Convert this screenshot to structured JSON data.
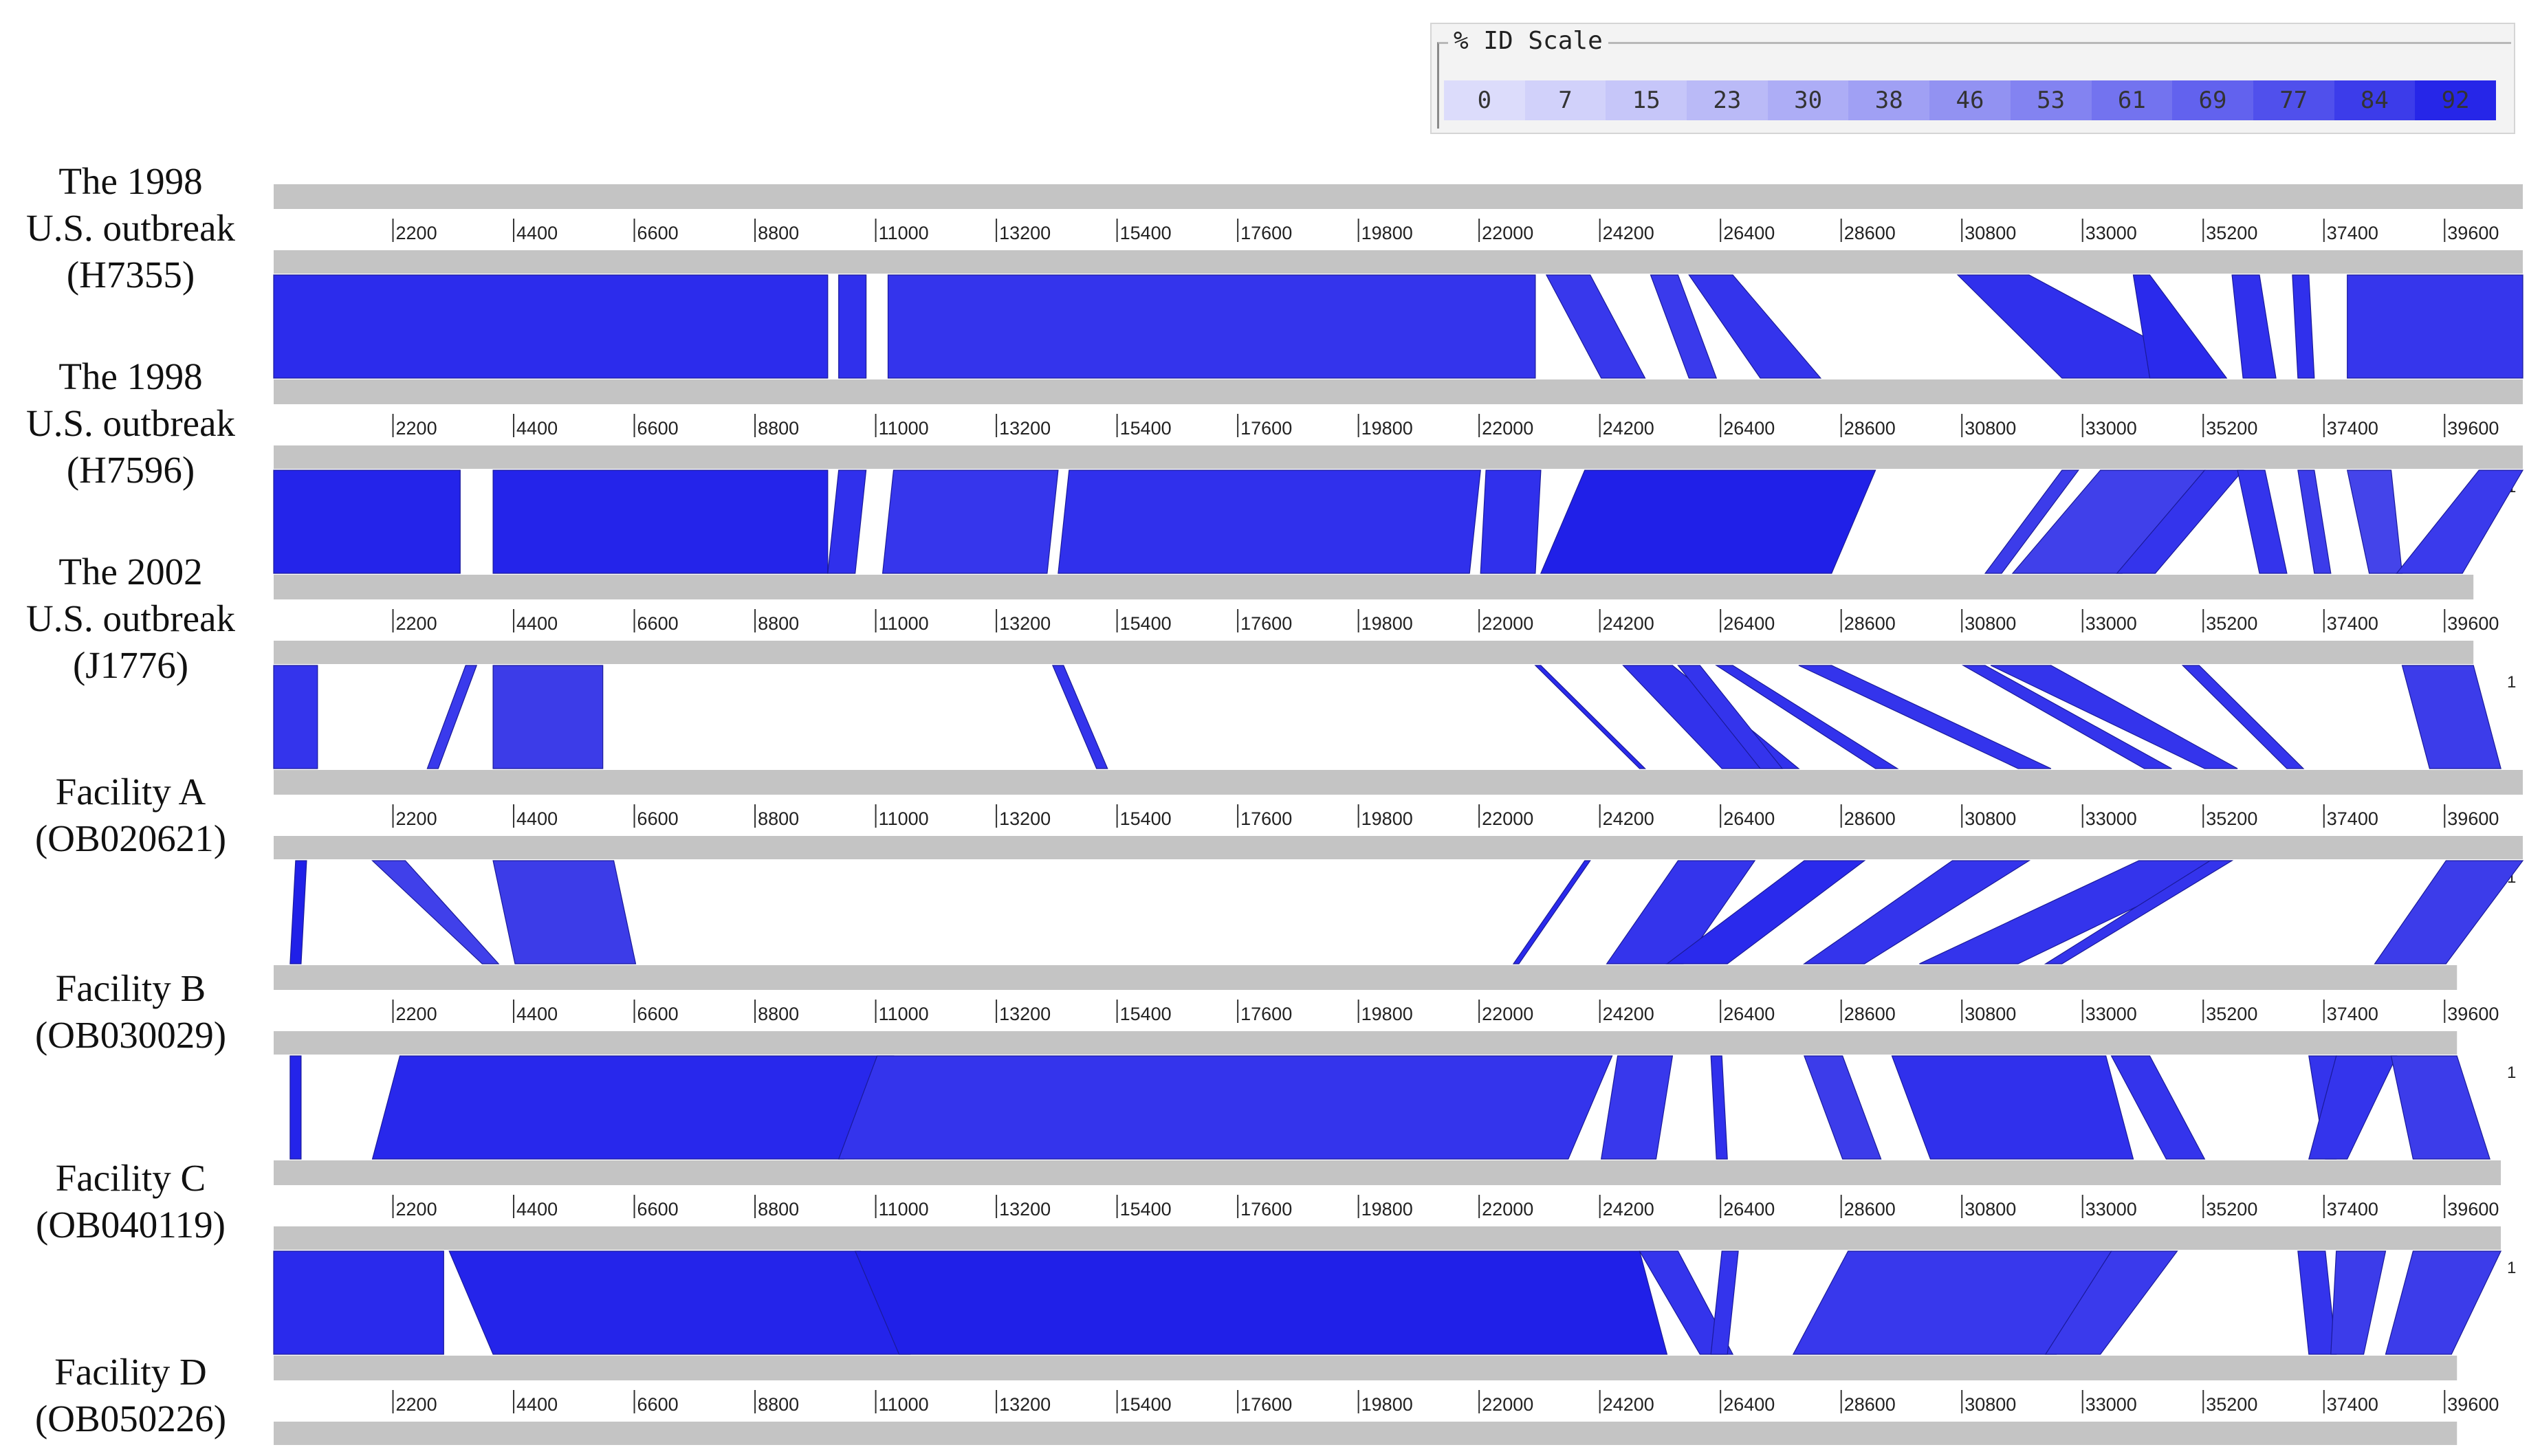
{
  "id_scale": {
    "title": "% ID Scale",
    "values": [
      "0",
      "7",
      "15",
      "23",
      "30",
      "38",
      "46",
      "53",
      "61",
      "69",
      "77",
      "84",
      "92"
    ],
    "colors": [
      "#dcdcfb",
      "#d1d1fa",
      "#c6c6f9",
      "#babaf7",
      "#adadf6",
      "#a0a0f4",
      "#9292f2",
      "#8383f1",
      "#7373ef",
      "#6262ee",
      "#5050ec",
      "#3c3cea",
      "#2626e8"
    ]
  },
  "tick_labels": [
    "2200",
    "4400",
    "6600",
    "8800",
    "11000",
    "13200",
    "15400",
    "17600",
    "19800",
    "22000",
    "24200",
    "26400",
    "28600",
    "30800",
    "33000",
    "35200",
    "37400",
    "39600"
  ],
  "tick_values": [
    2200,
    4400,
    6600,
    8800,
    11000,
    13200,
    15400,
    17600,
    19800,
    22000,
    24200,
    26400,
    28600,
    30800,
    33000,
    35200,
    37400,
    39600
  ],
  "genomes": [
    {
      "lines": [
        "The 1998",
        "U.S. outbreak",
        "(H7355)"
      ],
      "length": 41000,
      "end_mark": "1"
    },
    {
      "lines": [
        "The 1998",
        "U.S. outbreak",
        "(H7596)"
      ],
      "length": 41000,
      "end_mark": "1"
    },
    {
      "lines": [
        "The 2002",
        "U.S. outbreak",
        "(J1776)"
      ],
      "length": 40100,
      "end_mark": "1"
    },
    {
      "lines": [
        "Facility A",
        "(OB020621)"
      ],
      "length": 41000,
      "end_mark": "1"
    },
    {
      "lines": [
        "Facility B",
        "(OB030029)"
      ],
      "length": 39800,
      "end_mark": "1"
    },
    {
      "lines": [
        "Facility C",
        "(OB040119)"
      ],
      "length": 40600,
      "end_mark": "1"
    },
    {
      "lines": [
        "Facility D",
        "(OB050226)"
      ],
      "length": 39800,
      "end_mark": ""
    }
  ],
  "alignments": [
    {
      "pair": 0,
      "blocks": [
        [
          0,
          10100,
          0,
          10100,
          "#2c2cec"
        ],
        [
          10300,
          10800,
          10300,
          10800,
          "#3030ec"
        ],
        [
          11200,
          23000,
          11200,
          23000,
          "#3434ec"
        ],
        [
          23200,
          24000,
          24200,
          25000,
          "#3838ec"
        ],
        [
          25100,
          25600,
          25800,
          26300,
          "#3a3aec"
        ],
        [
          25800,
          26600,
          27100,
          28200,
          "#3434ec"
        ],
        [
          30700,
          32000,
          32600,
          35500,
          "#3030ec"
        ],
        [
          33900,
          34200,
          34200,
          35600,
          "#2a2aec"
        ],
        [
          35700,
          36200,
          35900,
          36500,
          "#3030ec"
        ],
        [
          36800,
          37100,
          36900,
          37200,
          "#3030ec"
        ],
        [
          37800,
          41000,
          37800,
          41000,
          "#3636ec"
        ]
      ]
    },
    {
      "pair": 1,
      "blocks": [
        [
          0,
          3400,
          0,
          3400,
          "#2424ea"
        ],
        [
          4000,
          10100,
          4000,
          10100,
          "#2424ea"
        ],
        [
          10300,
          10800,
          10100,
          10600,
          "#3030ec"
        ],
        [
          11300,
          14300,
          11100,
          14100,
          "#3636ec"
        ],
        [
          14500,
          22000,
          14300,
          21800,
          "#3030ec"
        ],
        [
          22100,
          23100,
          22000,
          23000,
          "#3030ec"
        ],
        [
          23900,
          29200,
          23100,
          28400,
          "#2020e8"
        ],
        [
          32600,
          32900,
          31200,
          31500,
          "#3c3cea"
        ],
        [
          33300,
          35200,
          31700,
          33700,
          "#4040ea"
        ],
        [
          35200,
          35900,
          33600,
          34300,
          "#3434ec"
        ],
        [
          35800,
          36300,
          36200,
          36700,
          "#3434ec"
        ],
        [
          36900,
          37200,
          37200,
          37500,
          "#3c3cea"
        ],
        [
          37800,
          38600,
          38200,
          38800,
          "#4444ea"
        ],
        [
          40200,
          41000,
          38700,
          39900,
          "#3a3aec"
        ]
      ]
    },
    {
      "pair": 2,
      "blocks": [
        [
          0,
          800,
          0,
          800,
          "#3434ec"
        ],
        [
          3500,
          3700,
          2800,
          3000,
          "#3a3aec"
        ],
        [
          4000,
          6000,
          4000,
          6000,
          "#3c3ce8"
        ],
        [
          14200,
          14400,
          15000,
          15200,
          "#3434ec"
        ],
        [
          23000,
          23100,
          24900,
          25000,
          "#2a2aec"
        ],
        [
          24600,
          25500,
          26400,
          27800,
          "#3232ec"
        ],
        [
          25600,
          26000,
          27100,
          27500,
          "#3434ec"
        ],
        [
          26300,
          26600,
          29200,
          29600,
          "#3232ec"
        ],
        [
          27800,
          28400,
          31800,
          32400,
          "#3434ec"
        ],
        [
          30800,
          31200,
          34100,
          34600,
          "#3434ec"
        ],
        [
          31300,
          32400,
          35200,
          35800,
          "#3434ec"
        ],
        [
          34800,
          35100,
          36700,
          37000,
          "#3434ec"
        ],
        [
          38800,
          40100,
          39300,
          40600,
          "#3c3cea"
        ]
      ]
    },
    {
      "pair": 3,
      "blocks": [
        [
          400,
          600,
          300,
          500,
          "#2020e8"
        ],
        [
          1800,
          2400,
          3800,
          4100,
          "#4040ea"
        ],
        [
          4000,
          6200,
          4400,
          6600,
          "#3c3ce8"
        ],
        [
          23900,
          24000,
          22600,
          22700,
          "#2a2aec"
        ],
        [
          25600,
          27000,
          24300,
          25700,
          "#3434ec"
        ],
        [
          27900,
          29000,
          25400,
          26500,
          "#2a2aec"
        ],
        [
          30600,
          32000,
          27900,
          29000,
          "#3434ec"
        ],
        [
          34000,
          35700,
          30000,
          31800,
          "#3434ec"
        ],
        [
          35300,
          35700,
          32300,
          32600,
          "#3434ec"
        ],
        [
          39600,
          41000,
          38300,
          39600,
          "#3c3cea"
        ]
      ]
    },
    {
      "pair": 4,
      "blocks": [
        [
          300,
          500,
          300,
          500,
          "#2424ea"
        ],
        [
          2300,
          11300,
          1800,
          10400,
          "#2828ec"
        ],
        [
          11000,
          24400,
          10300,
          23600,
          "#3434ec"
        ],
        [
          24500,
          25500,
          24200,
          25200,
          "#3838ec"
        ],
        [
          26200,
          26400,
          26300,
          26500,
          "#3030ec"
        ],
        [
          27900,
          28600,
          28600,
          29300,
          "#3c3cea"
        ],
        [
          29500,
          33400,
          30200,
          33900,
          "#3030ec"
        ],
        [
          33500,
          34200,
          34500,
          35200,
          "#3434ec"
        ],
        [
          37100,
          37600,
          37400,
          37600,
          "#3434ec"
        ],
        [
          37600,
          38700,
          37100,
          37800,
          "#3434ec"
        ],
        [
          38600,
          39800,
          39000,
          40400,
          "#3c3cea"
        ]
      ]
    },
    {
      "pair": 5,
      "blocks": [
        [
          0,
          3100,
          0,
          3100,
          "#2a2aec"
        ],
        [
          3200,
          10700,
          4000,
          11600,
          "#2424ea"
        ],
        [
          10600,
          24900,
          11400,
          25400,
          "#2020e8"
        ],
        [
          24900,
          25600,
          26000,
          26600,
          "#3434ec"
        ],
        [
          26400,
          26700,
          26200,
          26500,
          "#3434ec"
        ],
        [
          28700,
          33500,
          27700,
          32500,
          "#3838ec"
        ],
        [
          33500,
          34700,
          32300,
          33300,
          "#3a3aec"
        ],
        [
          36900,
          37400,
          37100,
          37600,
          "#3434ec"
        ],
        [
          37600,
          38500,
          37500,
          38100,
          "#3c3cea"
        ],
        [
          39000,
          40600,
          38500,
          39700,
          "#3c3cea"
        ]
      ]
    }
  ]
}
